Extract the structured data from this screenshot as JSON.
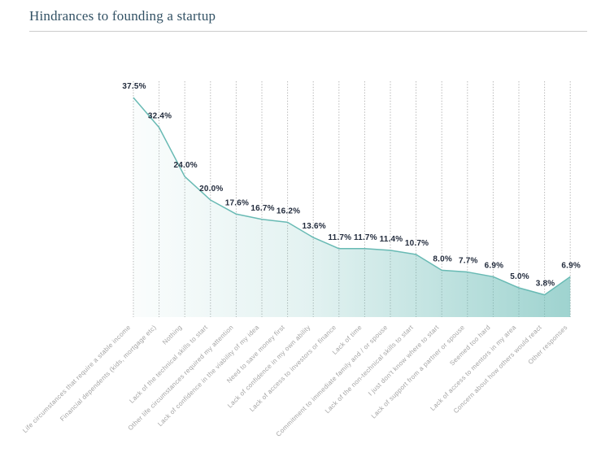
{
  "title": "Hindrances to founding a startup",
  "chart_data": {
    "type": "area",
    "title": "Hindrances to founding a startup",
    "categories": [
      "Life circumstances that require a stable income",
      "Financial dependents (kids, mortgage etc)",
      "Nothing",
      "Lack of the technical skills to start",
      "Other life circumstances required my attention",
      "Lack of confidence in the viability of my idea",
      "Need to save money first",
      "Lack of confidence in my own ability",
      "Lack of access to investors or finance",
      "Lack of time",
      "Commitment to immediate family and / or spouse",
      "Lack of the non-technical skills to start",
      "I just don't know where to start",
      "Lack of support from a partner or spouse",
      "Seemed too hard",
      "Lack of access to mentors in my area",
      "Concern about how others would react",
      "Other responses"
    ],
    "values": [
      37.5,
      32.4,
      24.0,
      20.0,
      17.6,
      16.7,
      16.2,
      13.6,
      11.7,
      11.7,
      11.4,
      10.7,
      8.0,
      7.7,
      6.9,
      5.0,
      3.8,
      6.9
    ],
    "value_labels": [
      "37.5%",
      "32.4%",
      "24.0%",
      "20.0%",
      "17.6%",
      "16.7%",
      "16.2%",
      "13.6%",
      "11.7%",
      "11.7%",
      "11.4%",
      "10.7%",
      "8.0%",
      "7.7%",
      "6.9%",
      "5.0%",
      "3.8%",
      "6.9%"
    ],
    "xlabel": "",
    "ylabel": "",
    "ylim": [
      0,
      40
    ],
    "grid": "vertical-dotted",
    "legend": "none",
    "colors": {
      "line": "#68bab4",
      "fill": "#63b8b2",
      "value_label": "#232c3d",
      "axis_label": "#a3a3a3",
      "gridline": "#b5b5b5",
      "title": "#335265",
      "divider": "#cccccc"
    }
  }
}
